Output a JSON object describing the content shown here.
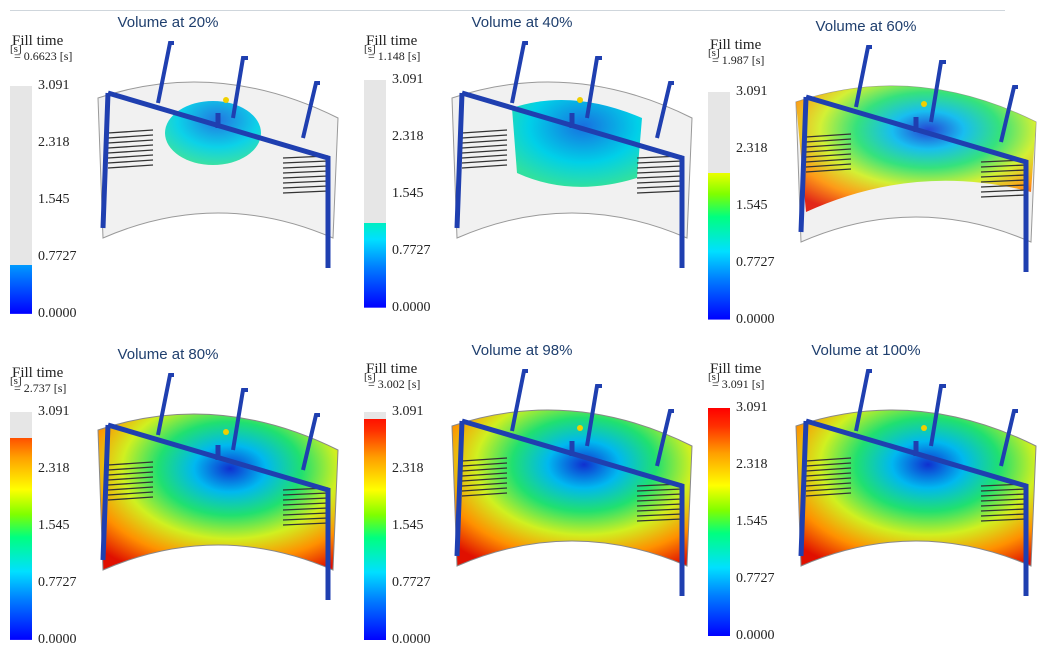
{
  "panels": [
    {
      "title": "Volume at 20%",
      "legend_name": "Fill time",
      "legend_unit": "[s]",
      "current_time": "= 0.6623 [s]",
      "fraction": 0.2143
    },
    {
      "title": "Volume at 40%",
      "legend_name": "Fill time",
      "legend_unit": "[s]",
      "current_time": "= 1.148 [s]",
      "fraction": 0.3714
    },
    {
      "title": "Volume at 60%",
      "legend_name": "Fill time",
      "legend_unit": "[s]",
      "current_time": "= 1.987 [s]",
      "fraction": 0.6429
    },
    {
      "title": "Volume at 80%",
      "legend_name": "Fill time",
      "legend_unit": "[s]",
      "current_time": "= 2.737 [s]",
      "fraction": 0.8855
    },
    {
      "title": "Volume at 98%",
      "legend_name": "Fill time",
      "legend_unit": "[s]",
      "current_time": "= 3.002 [s]",
      "fraction": 0.9712
    },
    {
      "title": "Volume at 100%",
      "legend_name": "Fill time",
      "legend_unit": "[s]",
      "current_time": "= 3.091 [s]",
      "fraction": 1.0
    }
  ],
  "scale_ticks": [
    "3.091",
    "2.318",
    "1.545",
    "0.7727",
    "0.0000"
  ],
  "colors": {
    "unfilled": "#e6e6e6",
    "runner": "#1f3fb0",
    "title": "#1f3f6e"
  }
}
